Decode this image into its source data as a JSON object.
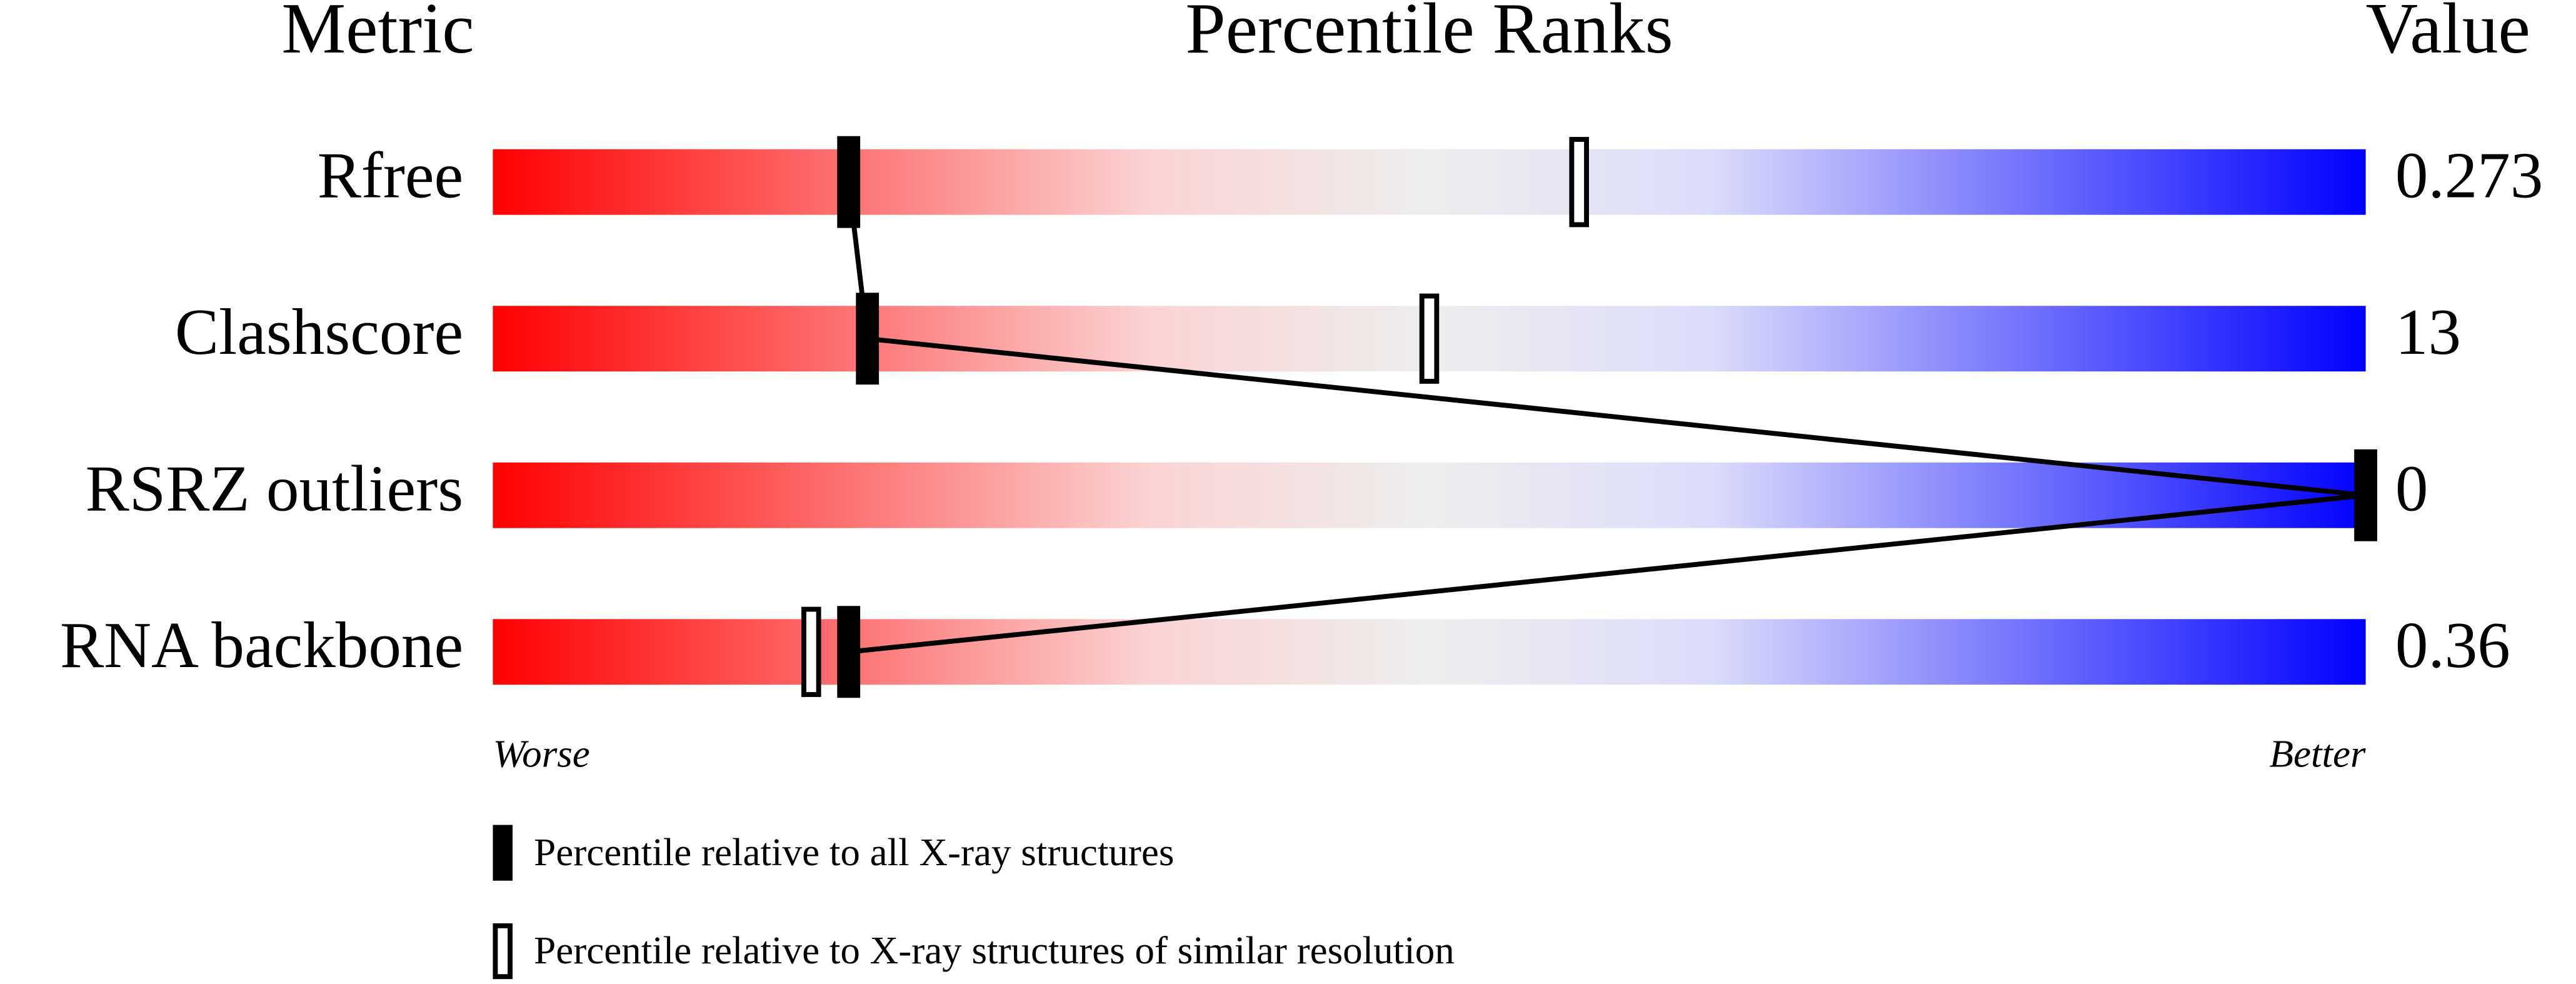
{
  "chart_data": {
    "type": "percentile-slider",
    "title": "Percentile Ranks",
    "metric_header": "Metric",
    "value_header": "Value",
    "xlim": [
      0,
      100
    ],
    "low_label": "Worse",
    "high_label": "Better",
    "legend": [
      "Percentile relative to all X-ray structures",
      "Percentile relative to X-ray structures of similar resolution"
    ],
    "metrics": [
      {
        "name": "Rfree",
        "value": 0.273,
        "percentile_all": 19,
        "percentile_similar": 58
      },
      {
        "name": "Clashscore",
        "value": 13,
        "percentile_all": 20,
        "percentile_similar": 50
      },
      {
        "name": "RSRZ outliers",
        "value": 0,
        "percentile_all": 100,
        "percentile_similar": 100
      },
      {
        "name": "RNA backbone",
        "value": 0.36,
        "percentile_all": 19,
        "percentile_similar": 17
      }
    ]
  }
}
